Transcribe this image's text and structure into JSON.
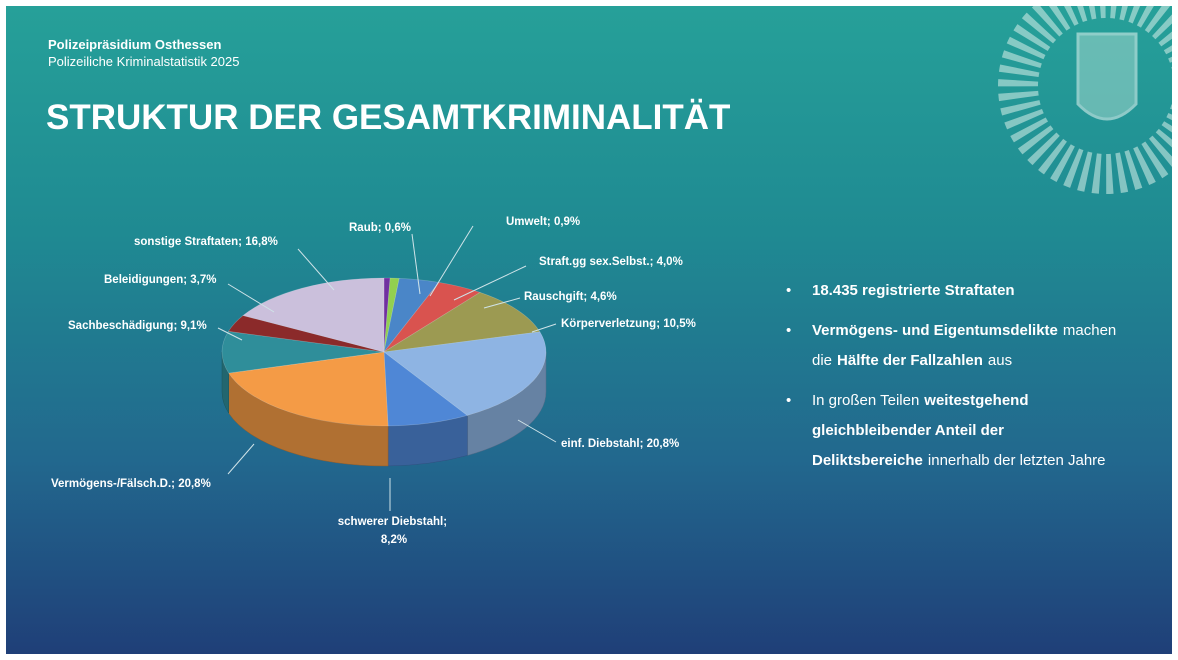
{
  "header": {
    "organization": "Polizeipräsidium Osthessen",
    "subtitle": "Polizeiliche Kriminalstatistik 2025",
    "title": "STRUKTUR DER GESAMTKRIMINALITÄT"
  },
  "chart_data": {
    "type": "pie3d",
    "categories": [
      "Raub",
      "Umwelt",
      "Straft.gg sex.Selbst.",
      "Rauschgift",
      "Körperverletzung",
      "einf. Diebstahl",
      "schwerer Diebstahl",
      "Vermögens-/Fälsch.D.",
      "Sachbeschädigung",
      "Beleidigungen",
      "sonstige Straftaten"
    ],
    "values": [
      0.6,
      0.9,
      4.0,
      4.6,
      10.5,
      20.8,
      8.2,
      20.8,
      9.1,
      3.7,
      16.8
    ],
    "value_labels": [
      "0,6%",
      "0,9%",
      "4,0%",
      "4,6%",
      "10,5%",
      "20,8%",
      "8,2%",
      "20,8%",
      "9,1%",
      "3,7%",
      "16,8%"
    ],
    "label_separator": "; ",
    "colors": [
      "#7030a0",
      "#92d050",
      "#4a86c8",
      "#d9534f",
      "#9c9a52",
      "#8eb4e3",
      "#4f87d6",
      "#f49b46",
      "#2f8e9a",
      "#8b2a2a",
      "#cbc0dc"
    ]
  },
  "bullets": [
    [
      {
        "text": "18.435 registrierte Straftaten",
        "bold": true
      }
    ],
    [
      {
        "text": "Vermögens- und Eigentumsdelikte",
        "bold": true
      },
      {
        "text": "machen die",
        "bold": false
      },
      {
        "text": "Hälfte der Fallzahlen",
        "bold": true
      },
      {
        "text": "aus",
        "bold": false
      }
    ],
    [
      {
        "text": "In großen Teilen",
        "bold": false
      },
      {
        "text": "weitestgehend gleichbleibender Anteil der Deliktsbereiche",
        "bold": true
      },
      {
        "text": "innerhalb der letzten Jahre",
        "bold": false
      }
    ]
  ]
}
